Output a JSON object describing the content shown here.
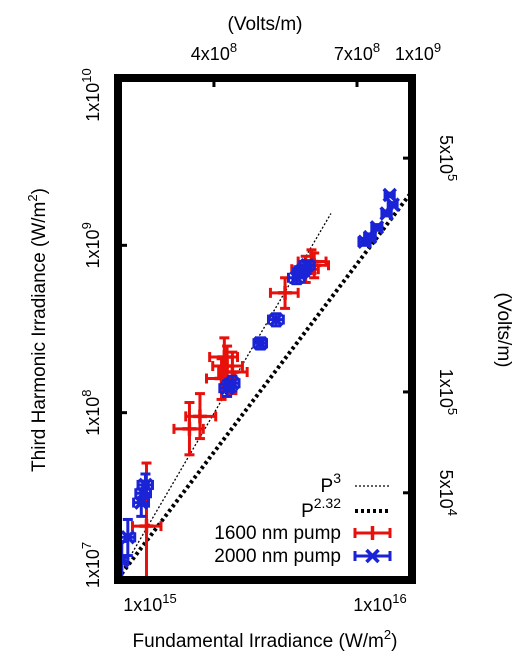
{
  "chart_data": {
    "type": "scatter",
    "xlabel": "Fundamental Irradiance (W/m",
    "xlabel_sup": "2",
    "xlabel_end": ")",
    "ylabel": "Third Harmonic Irradiance (W/m",
    "ylabel_sup": "2",
    "ylabel_end": ")",
    "x2label": "(Volts/m)",
    "y2label": "(Volts/m)",
    "x_scale": "log",
    "y_scale": "log",
    "xlim": [
      1000000000000000.0,
      1e+16
    ],
    "ylim": [
      10000000.0,
      10000000000.0
    ],
    "x_ticks": [
      {
        "value": 1000000000000000.0,
        "mant": "1x10",
        "exp": "15"
      },
      {
        "value": 1e+16,
        "mant": "1x10",
        "exp": "16"
      }
    ],
    "y_ticks": [
      {
        "value": 10000000.0,
        "mant": "1x10",
        "exp": "7"
      },
      {
        "value": 100000000.0,
        "mant": "1x10",
        "exp": "8"
      },
      {
        "value": 1000000000.0,
        "mant": "1x10",
        "exp": "9"
      },
      {
        "value": 10000000000.0,
        "mant": "1x10",
        "exp": "10"
      }
    ],
    "x2_ticks": [
      {
        "irr": 2120000000000000.0,
        "mant": "4x10",
        "exp": "8"
      },
      {
        "irr": 6500000000000000.0,
        "mant": "7x10",
        "exp": "8"
      },
      {
        "irr": 1.327e+16,
        "mant": "1x10",
        "exp": "9"
      }
    ],
    "y2_ticks": [
      {
        "irr": 3320000000.0,
        "mant": "5x10",
        "exp": "5"
      },
      {
        "irr": 133000000.0,
        "mant": "1x10",
        "exp": "5"
      },
      {
        "irr": 33200000.0,
        "mant": "5x10",
        "exp": "4"
      }
    ],
    "legend_position": "bottom-right",
    "legend": [
      {
        "label": "P",
        "sup": "3",
        "style": "thin-dotted"
      },
      {
        "label": "P",
        "sup": "2.32",
        "style": "thick-dotted"
      },
      {
        "label": "1600 nm pump",
        "style": "red-plus"
      },
      {
        "label": "2000 nm pump",
        "style": "blue-x"
      }
    ],
    "fit_lines": [
      {
        "name": "P3",
        "exponent": 3,
        "x": [
          1000000000000000.0,
          5300000000000000.0
        ],
        "y": [
          10400000.0,
          1550000000.0
        ]
      },
      {
        "name": "P2.32",
        "exponent": 2.32,
        "x": [
          1000000000000000.0,
          1e+16
        ],
        "y": [
          10200000.0,
          2100000000.0
        ]
      }
    ],
    "colors": {
      "series_1600": "#e8100b",
      "series_2000": "#1a24d6",
      "fit": "#000000"
    },
    "series": [
      {
        "name": "1600 nm pump",
        "points": [
          {
            "x": 1250000000000000.0,
            "y": 21000000.0,
            "xerr": [
              1120000000000000.0,
              1400000000000000.0
            ],
            "yerr": [
              10000000.0,
              50000000.0
            ]
          },
          {
            "x": 1750000000000000.0,
            "y": 80000000.0,
            "xerr": [
              1550000000000000.0,
              1950000000000000.0
            ],
            "yerr": [
              56000000.0,
              115000000.0
            ]
          },
          {
            "x": 1900000000000000.0,
            "y": 95000000.0,
            "xerr": [
              1700000000000000.0,
              2150000000000000.0
            ],
            "yerr": [
              70000000.0,
              130000000.0
            ]
          },
          {
            "x": 2250000000000000.0,
            "y": 160000000.0,
            "xerr": [
              2000000000000000.0,
              2500000000000000.0
            ],
            "yerr": [
              120000000.0,
              210000000.0
            ]
          },
          {
            "x": 2350000000000000.0,
            "y": 190000000.0,
            "xerr": [
              2100000000000000.0,
              2650000000000000.0
            ],
            "yerr": [
              140000000.0,
              250000000.0
            ]
          },
          {
            "x": 2450000000000000.0,
            "y": 175000000.0,
            "xerr": [
              2200000000000000.0,
              2750000000000000.0
            ],
            "yerr": [
              130000000.0,
              230000000.0
            ]
          },
          {
            "x": 2300000000000000.0,
            "y": 215000000.0,
            "xerr": [
              2050000000000000.0,
              2550000000000000.0
            ],
            "yerr": [
              160000000.0,
              280000000.0
            ]
          },
          {
            "x": 3700000000000000.0,
            "y": 520000000.0,
            "xerr": [
              3300000000000000.0,
              4100000000000000.0
            ],
            "yerr": [
              420000000.0,
              640000000.0
            ]
          },
          {
            "x": 4350000000000000.0,
            "y": 720000000.0,
            "xerr": [
              3900000000000000.0,
              4800000000000000.0
            ],
            "yerr": [
              600000000.0,
              860000000.0
            ]
          },
          {
            "x": 4550000000000000.0,
            "y": 800000000.0,
            "xerr": [
              4100000000000000.0,
              5100000000000000.0
            ],
            "yerr": [
              680000000.0,
              940000000.0
            ]
          },
          {
            "x": 4650000000000000.0,
            "y": 760000000.0,
            "xerr": [
              4200000000000000.0,
              5200000000000000.0
            ],
            "yerr": [
              640000000.0,
              900000000.0
            ]
          }
        ]
      },
      {
        "name": "2000 nm pump",
        "points": [
          {
            "x": 1030000000000000.0,
            "y": 13000000.0,
            "xerr": [
              980000000000000.0,
              1080000000000000.0
            ],
            "yerr": [
              10000000.0,
              17000000.0
            ]
          },
          {
            "x": 1080000000000000.0,
            "y": 18000000.0,
            "xerr": [
              1020000000000000.0,
              1140000000000000.0
            ],
            "yerr": [
              14000000.0,
              23000000.0
            ]
          },
          {
            "x": 1200000000000000.0,
            "y": 29000000.0,
            "xerr": [
              1130000000000000.0,
              1270000000000000.0
            ],
            "yerr": [
              24000000.0,
              35000000.0
            ]
          },
          {
            "x": 1220000000000000.0,
            "y": 33000000.0,
            "xerr": [
              1150000000000000.0,
              1290000000000000.0
            ],
            "yerr": [
              28000000.0,
              39000000.0
            ]
          },
          {
            "x": 1240000000000000.0,
            "y": 37000000.0,
            "xerr": [
              1170000000000000.0,
              1310000000000000.0
            ],
            "yerr": [
              32000000.0,
              43000000.0
            ]
          },
          {
            "x": 2350000000000000.0,
            "y": 140000000.0,
            "xerr": [
              2220000000000000.0,
              2480000000000000.0
            ],
            "yerr": [
              125000000.0,
              155000000.0
            ]
          },
          {
            "x": 2450000000000000.0,
            "y": 150000000.0,
            "xerr": [
              2320000000000000.0,
              2580000000000000.0
            ],
            "yerr": [
              135000000.0,
              165000000.0
            ]
          },
          {
            "x": 3050000000000000.0,
            "y": 260000000.0,
            "xerr": [
              2900000000000000.0,
              3200000000000000.0
            ],
            "yerr": [
              240000000.0,
              280000000.0
            ]
          },
          {
            "x": 3450000000000000.0,
            "y": 360000000.0,
            "xerr": [
              3250000000000000.0,
              3650000000000000.0
            ],
            "yerr": [
              330000000.0,
              390000000.0
            ]
          },
          {
            "x": 4050000000000000.0,
            "y": 640000000.0,
            "xerr": [
              3800000000000000.0,
              4300000000000000.0
            ],
            "yerr": [
              590000000.0,
              690000000.0
            ]
          },
          {
            "x": 4250000000000000.0,
            "y": 710000000.0,
            "xerr": [
              4000000000000000.0,
              4500000000000000.0
            ],
            "yerr": [
              660000000.0,
              760000000.0
            ]
          },
          {
            "x": 4400000000000000.0,
            "y": 760000000.0,
            "xerr": [
              4150000000000000.0,
              4650000000000000.0
            ],
            "yerr": [
              710000000.0,
              810000000.0
            ]
          },
          {
            "x": 4200000000000000.0,
            "y": 690000000.0,
            "xerr": [
              3950000000000000.0,
              4450000000000000.0
            ],
            "yerr": [
              640000000.0,
              740000000.0
            ]
          },
          {
            "x": 6900000000000000.0,
            "y": 1050000000.0,
            "xerr": [
              6600000000000000.0,
              7200000000000000.0
            ],
            "yerr": [
              1000000000.0,
              1100000000.0
            ]
          },
          {
            "x": 7200000000000000.0,
            "y": 1120000000.0,
            "xerr": [
              6900000000000000.0,
              7500000000000000.0
            ],
            "yerr": [
              1070000000.0,
              1170000000.0
            ]
          },
          {
            "x": 7600000000000000.0,
            "y": 1280000000.0,
            "xerr": [
              7300000000000000.0,
              7900000000000000.0
            ],
            "yerr": [
              1230000000.0,
              1330000000.0
            ]
          },
          {
            "x": 8200000000000000.0,
            "y": 1550000000.0,
            "xerr": [
              7900000000000000.0,
              8500000000000000.0
            ],
            "yerr": [
              1500000000.0,
              1600000000.0
            ]
          },
          {
            "x": 8600000000000000.0,
            "y": 1750000000.0,
            "xerr": [
              8300000000000000.0,
              8900000000000000.0
            ],
            "yerr": [
              1700000000.0,
              1800000000.0
            ]
          },
          {
            "x": 8400000000000000.0,
            "y": 2000000000.0,
            "xerr": [
              8100000000000000.0,
              8700000000000000.0
            ],
            "yerr": [
              1950000000.0,
              2050000000.0
            ]
          }
        ]
      }
    ]
  }
}
